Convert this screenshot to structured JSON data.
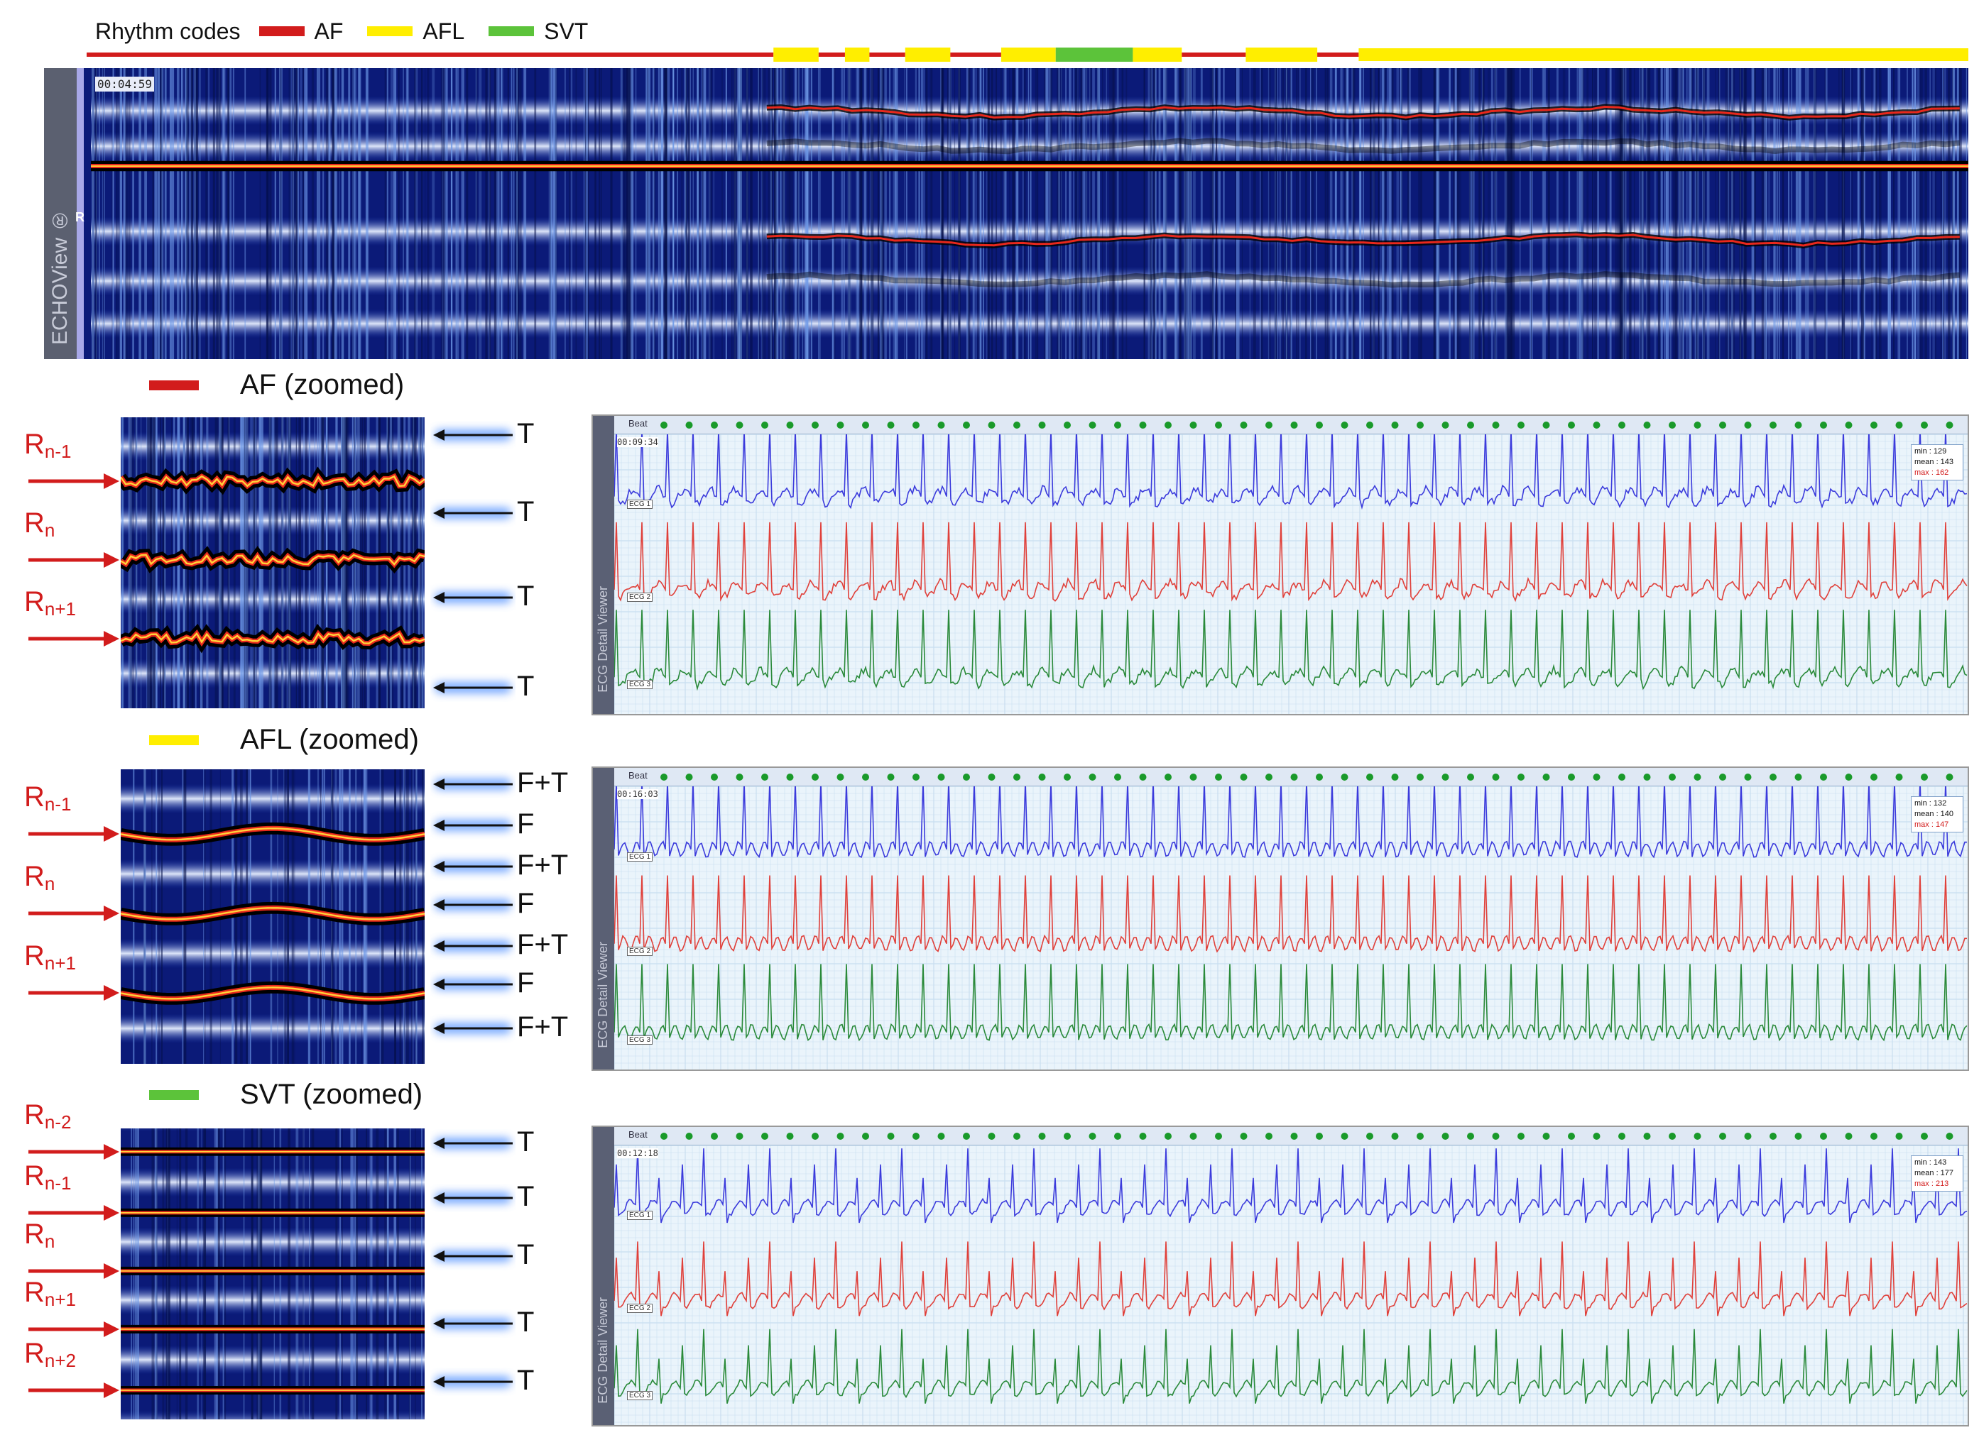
{
  "legend": {
    "title": "Rhythm codes",
    "items": [
      {
        "label": "AF",
        "color": "#d21c1c"
      },
      {
        "label": "AFL",
        "color": "#ffee00"
      },
      {
        "label": "SVT",
        "color": "#5cc33a"
      }
    ]
  },
  "main_view": {
    "brand": "ECHOView ®",
    "timestamp": "00:04:59",
    "r_marker": "R"
  },
  "panels": [
    {
      "title": "AF (zoomed)",
      "swatch_color": "#d21c1c",
      "r_labels": [
        {
          "main": "R",
          "sub": "n-1"
        },
        {
          "main": "R",
          "sub": "n"
        },
        {
          "main": "R",
          "sub": "n+1"
        }
      ],
      "wave_labels": [
        "T",
        "T",
        "T",
        "T"
      ],
      "ecg": {
        "viewer": "ECG Detail Viewer",
        "beat_label": "Beat",
        "timestamp": "00:09:34",
        "stats": {
          "min": "min : 129",
          "mean": "mean : 143",
          "max": "max : 162"
        },
        "leads": [
          "ECG 1",
          "ECG 2",
          "ECG 3"
        ]
      }
    },
    {
      "title": "AFL (zoomed)",
      "swatch_color": "#ffee00",
      "r_labels": [
        {
          "main": "R",
          "sub": "n-1"
        },
        {
          "main": "R",
          "sub": "n"
        },
        {
          "main": "R",
          "sub": "n+1"
        }
      ],
      "wave_labels": [
        "F+T",
        "F",
        "F+T",
        "F",
        "F+T",
        "F",
        "F+T"
      ],
      "ecg": {
        "viewer": "ECG Detail Viewer",
        "beat_label": "Beat",
        "timestamp": "00:16:03",
        "stats": {
          "min": "min : 132",
          "mean": "mean : 140",
          "max": "max : 147"
        },
        "leads": [
          "ECG 1",
          "ECG 2",
          "ECG 3"
        ]
      }
    },
    {
      "title": "SVT (zoomed)",
      "swatch_color": "#5cc33a",
      "r_labels": [
        {
          "main": "R",
          "sub": "n-2"
        },
        {
          "main": "R",
          "sub": "n-1"
        },
        {
          "main": "R",
          "sub": "n"
        },
        {
          "main": "R",
          "sub": "n+1"
        },
        {
          "main": "R",
          "sub": "n+2"
        }
      ],
      "wave_labels": [
        "T",
        "T",
        "T",
        "T",
        "T"
      ],
      "ecg": {
        "viewer": "ECG Detail Viewer",
        "beat_label": "Beat",
        "timestamp": "00:12:18",
        "stats": {
          "min": "min : 143",
          "mean": "mean : 177",
          "max": "max : 213"
        },
        "leads": [
          "ECG 1",
          "ECG 2",
          "ECG 3"
        ]
      }
    }
  ],
  "rhythm_segments": [
    {
      "code": "AF",
      "start": 0.0,
      "end": 0.365
    },
    {
      "code": "AFL",
      "start": 0.365,
      "end": 0.389
    },
    {
      "code": "AF",
      "start": 0.389,
      "end": 0.403
    },
    {
      "code": "AFL",
      "start": 0.403,
      "end": 0.416
    },
    {
      "code": "AF",
      "start": 0.416,
      "end": 0.435
    },
    {
      "code": "AFL",
      "start": 0.435,
      "end": 0.459
    },
    {
      "code": "AF",
      "start": 0.459,
      "end": 0.486
    },
    {
      "code": "AFL",
      "start": 0.486,
      "end": 0.515
    },
    {
      "code": "SVT",
      "start": 0.515,
      "end": 0.556
    },
    {
      "code": "AFL",
      "start": 0.556,
      "end": 0.582
    },
    {
      "code": "AF",
      "start": 0.582,
      "end": 0.616
    },
    {
      "code": "AFL",
      "start": 0.616,
      "end": 0.654
    },
    {
      "code": "AF",
      "start": 0.654,
      "end": 0.676
    },
    {
      "code": "AFL",
      "start": 0.676,
      "end": 1.0
    }
  ]
}
